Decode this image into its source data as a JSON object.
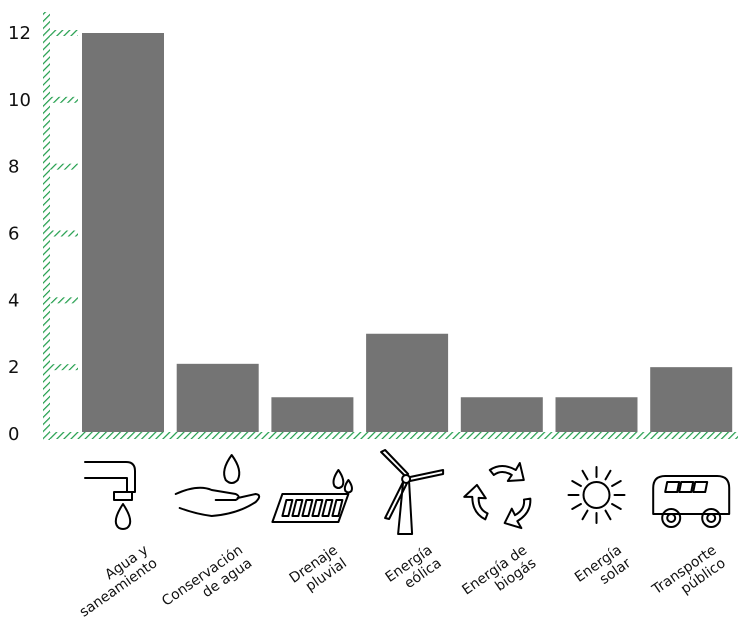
{
  "chart_data": {
    "type": "bar",
    "categories": [
      [
        "Agua y",
        "saneamiento"
      ],
      [
        "Conservación",
        "de agua"
      ],
      [
        "Drenaje",
        "pluvial"
      ],
      [
        "Energía",
        "eólica"
      ],
      [
        "Energía de",
        "biogás"
      ],
      [
        "Energía",
        "solar"
      ],
      [
        "Transporte",
        "público"
      ]
    ],
    "values": [
      12,
      2.1,
      1.1,
      3,
      1.1,
      1.1,
      2
    ],
    "ylim": [
      0,
      12
    ],
    "yticks": [
      0,
      2,
      4,
      6,
      8,
      10,
      12
    ],
    "grid": false,
    "icons": [
      "faucet-drop-icon",
      "hand-drop-icon",
      "drain-grate-icon",
      "wind-turbine-icon",
      "recycle-icon",
      "sun-icon",
      "bus-icon"
    ],
    "colors": {
      "bar": "#747474",
      "axis": "#1f9d4a"
    }
  }
}
